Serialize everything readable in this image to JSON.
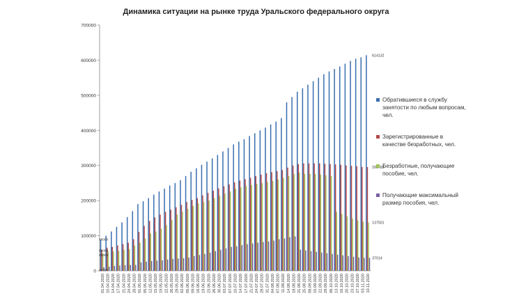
{
  "chart_data": {
    "type": "bar",
    "title": "Динамика ситуации на рынке труда Уральского федерального округа",
    "xlabel": "",
    "ylabel": "",
    "ylim": [
      0,
      700000
    ],
    "yticks": [
      "0",
      "100000",
      "200000",
      "300000",
      "400000",
      "500000",
      "600000",
      "700000"
    ],
    "grid": false,
    "legend_position": "right",
    "categories": [
      "01.04.2020",
      "10.04.2020",
      "14.04.2020",
      "17.04.2020",
      "21.04.2020",
      "24.04.2020",
      "28.04.2020",
      "01.05.2020",
      "05.05.2020",
      "12.05.2020",
      "15.05.2020",
      "19.05.2020",
      "22.05.2020",
      "26.05.2020",
      "29.05.2020",
      "02.06.2020",
      "05.06.2020",
      "09.06.2020",
      "16.06.2020",
      "19.06.2020",
      "23.06.2020",
      "26.06.2020",
      "30.06.2020",
      "03.07.2020",
      "07.07.2020",
      "10.07.2020",
      "14.07.2020",
      "17.07.2020",
      "21.07.2020",
      "24.07.2020",
      "28.07.2020",
      "31.07.2020",
      "04.08.2020",
      "07.08.2020",
      "11.08.2020",
      "14.08.2020",
      "18.08.2020",
      "21.08.2020",
      "25.08.2020",
      "08.09.2020",
      "15.09.2020",
      "22.09.2020",
      "29.09.2020",
      "06.10.2020",
      "13.10.2020",
      "16.10.2020",
      "20.10.2020",
      "23.10.2020",
      "27.10.2020",
      "03.11.2020",
      "10.11.2020"
    ],
    "series": [
      {
        "name": "Обратившиеся в службу занятости по любым вопросам, чел.",
        "color": "#3a6fb0",
        "values": [
          88000,
          100000,
          112000,
          125000,
          138000,
          153000,
          170000,
          190000,
          198000,
          207000,
          217000,
          226000,
          234000,
          243000,
          250000,
          258000,
          270000,
          282000,
          292000,
          302000,
          311000,
          320000,
          330000,
          340000,
          350000,
          360000,
          368000,
          375000,
          384000,
          392000,
          400000,
          408000,
          417000,
          425000,
          435000,
          480000,
          495000,
          510000,
          520000,
          530000,
          540000,
          550000,
          560000,
          568000,
          575000,
          582000,
          590000,
          598000,
          604000,
          608000,
          614132
        ]
      },
      {
        "name": "Зарегистрированные в качестве безработных, чел.",
        "color": "#b54848",
        "values": [
          59000,
          66000,
          68000,
          72000,
          76000,
          80000,
          90000,
          111000,
          128000,
          142000,
          152000,
          160000,
          168000,
          174000,
          181000,
          188000,
          196000,
          202000,
          207000,
          215000,
          222000,
          228000,
          235000,
          241000,
          246000,
          252000,
          257000,
          261000,
          265000,
          270000,
          274000,
          278000,
          281000,
          284000,
          287000,
          294000,
          300000,
          304000,
          306000,
          306000,
          306000,
          306000,
          305000,
          304000,
          303000,
          302000,
          300000,
          299000,
          298000,
          296000,
          295482
        ]
      },
      {
        "name": "Безработные, получающие пособие, чел.",
        "color": "#9fc258",
        "values": [
          50000,
          55000,
          55000,
          57000,
          60000,
          62000,
          72000,
          80000,
          92000,
          106000,
          112000,
          120000,
          130000,
          145000,
          160000,
          168000,
          176000,
          185000,
          192000,
          196000,
          200000,
          207000,
          214000,
          220000,
          226000,
          234000,
          238000,
          242000,
          244000,
          248000,
          250000,
          253000,
          256000,
          260000,
          265000,
          270000,
          276000,
          280000,
          276000,
          276000,
          276000,
          274000,
          272000,
          270000,
          168000,
          162000,
          155000,
          149000,
          143000,
          140000,
          137501
        ]
      },
      {
        "name": "Получающие максимальный размер пособия, чел.",
        "color": "#7a60a3",
        "values": [
          10000,
          12000,
          14000,
          15000,
          16000,
          16500,
          17000,
          24000,
          26000,
          28000,
          29000,
          30000,
          32000,
          34000,
          35000,
          36000,
          38000,
          42000,
          45000,
          48000,
          52000,
          56000,
          60000,
          64000,
          68000,
          70000,
          73000,
          76000,
          78000,
          80000,
          82000,
          84000,
          86000,
          90000,
          92000,
          96000,
          98000,
          60000,
          58000,
          56000,
          54000,
          52000,
          50000,
          48000,
          46000,
          44000,
          42000,
          40000,
          38000,
          37000,
          37014
        ]
      }
    ],
    "data_labels": [
      {
        "text": "614132"
      },
      {
        "text": "295482"
      },
      {
        "text": "137501"
      },
      {
        "text": "37014"
      },
      {
        "text": "88000"
      },
      {
        "text": "59000"
      },
      {
        "text": "50000"
      },
      {
        "text": "10000"
      }
    ]
  }
}
